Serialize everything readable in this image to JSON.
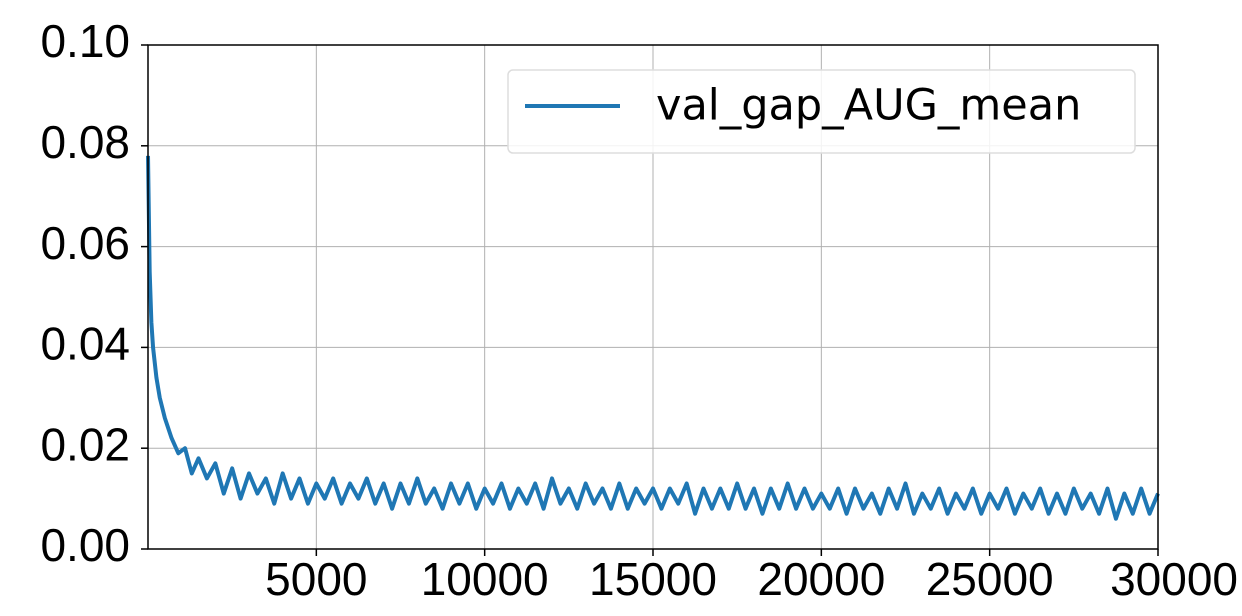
{
  "chart_data": {
    "type": "line",
    "x": [
      0,
      50,
      100,
      150,
      250,
      350,
      500,
      700,
      900,
      1100,
      1300,
      1500,
      1750,
      2000,
      2250,
      2500,
      2750,
      3000,
      3250,
      3500,
      3750,
      4000,
      4250,
      4500,
      4750,
      5000,
      5250,
      5500,
      5750,
      6000,
      6250,
      6500,
      6750,
      7000,
      7250,
      7500,
      7750,
      8000,
      8250,
      8500,
      8750,
      9000,
      9250,
      9500,
      9750,
      10000,
      10250,
      10500,
      10750,
      11000,
      11250,
      11500,
      11750,
      12000,
      12250,
      12500,
      12750,
      13000,
      13250,
      13500,
      13750,
      14000,
      14250,
      14500,
      14750,
      15000,
      15250,
      15500,
      15750,
      16000,
      16250,
      16500,
      16750,
      17000,
      17250,
      17500,
      17750,
      18000,
      18250,
      18500,
      18750,
      19000,
      19250,
      19500,
      19750,
      20000,
      20250,
      20500,
      20750,
      21000,
      21250,
      21500,
      21750,
      22000,
      22250,
      22500,
      22750,
      23000,
      23250,
      23500,
      23750,
      24000,
      24250,
      24500,
      24750,
      25000,
      25250,
      25500,
      25750,
      26000,
      26250,
      26500,
      26750,
      27000,
      27250,
      27500,
      27750,
      28000,
      28250,
      28500,
      28750,
      29000,
      29250,
      29500,
      29750,
      30000
    ],
    "series": [
      {
        "name": "val_gap_AUG_mean",
        "color": "#1f77b4",
        "values": [
          0.078,
          0.055,
          0.045,
          0.04,
          0.034,
          0.03,
          0.026,
          0.022,
          0.019,
          0.02,
          0.015,
          0.018,
          0.014,
          0.017,
          0.011,
          0.016,
          0.01,
          0.015,
          0.011,
          0.014,
          0.009,
          0.015,
          0.01,
          0.014,
          0.009,
          0.013,
          0.01,
          0.014,
          0.009,
          0.013,
          0.01,
          0.014,
          0.009,
          0.013,
          0.008,
          0.013,
          0.009,
          0.014,
          0.009,
          0.012,
          0.008,
          0.013,
          0.009,
          0.013,
          0.008,
          0.012,
          0.009,
          0.013,
          0.008,
          0.012,
          0.009,
          0.013,
          0.008,
          0.014,
          0.009,
          0.012,
          0.008,
          0.013,
          0.009,
          0.012,
          0.008,
          0.013,
          0.008,
          0.012,
          0.009,
          0.012,
          0.008,
          0.012,
          0.009,
          0.013,
          0.007,
          0.012,
          0.008,
          0.012,
          0.008,
          0.013,
          0.008,
          0.012,
          0.007,
          0.012,
          0.008,
          0.013,
          0.008,
          0.012,
          0.008,
          0.011,
          0.008,
          0.012,
          0.007,
          0.012,
          0.008,
          0.011,
          0.007,
          0.012,
          0.008,
          0.013,
          0.007,
          0.011,
          0.008,
          0.012,
          0.007,
          0.011,
          0.008,
          0.012,
          0.007,
          0.011,
          0.008,
          0.012,
          0.007,
          0.011,
          0.008,
          0.012,
          0.007,
          0.011,
          0.007,
          0.012,
          0.008,
          0.011,
          0.007,
          0.012,
          0.006,
          0.011,
          0.007,
          0.012,
          0.007,
          0.011
        ]
      }
    ],
    "xlim": [
      0,
      30000
    ],
    "xticks": [
      5000,
      10000,
      15000,
      20000,
      25000,
      30000
    ],
    "ylim": [
      0,
      0.1
    ],
    "yticks": [
      {
        "value": 0,
        "label": "0.00"
      },
      {
        "value": 0.02,
        "label": "0.02"
      },
      {
        "value": 0.04,
        "label": "0.04"
      },
      {
        "value": 0.06,
        "label": "0.06"
      },
      {
        "value": 0.08,
        "label": "0.08"
      },
      {
        "value": 0.1,
        "label": "0.10"
      }
    ],
    "grid": true,
    "legend": "upper right"
  }
}
